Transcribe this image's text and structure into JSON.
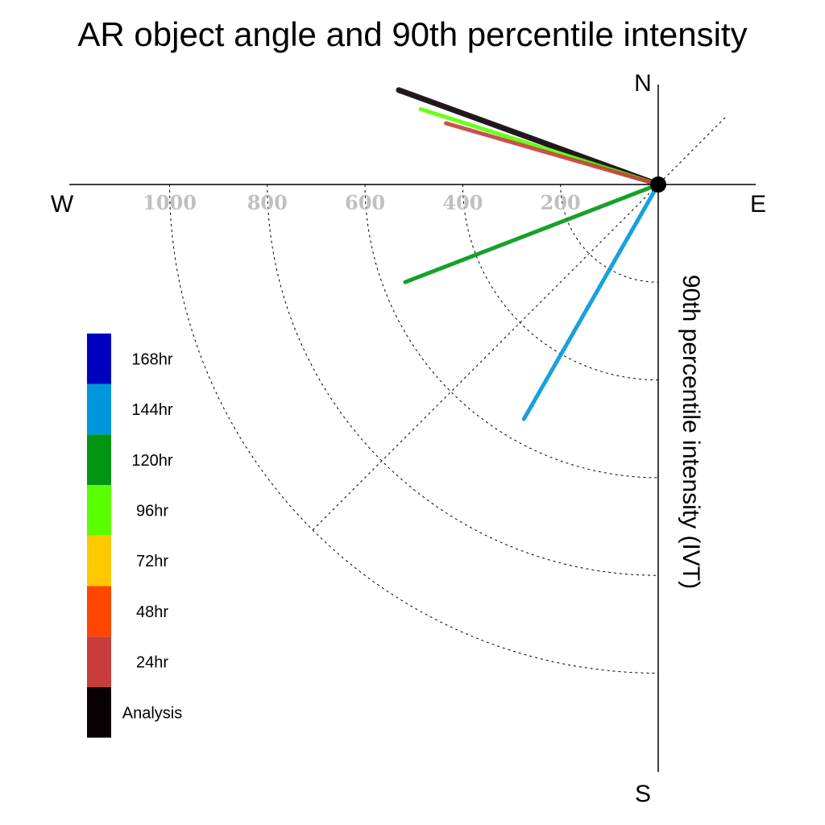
{
  "chart_data": {
    "type": "polar-vector",
    "title": "AR object angle and 90th percentile intensity",
    "ylabel": "90th percentile intensity (IVT)",
    "compass": {
      "north": "N",
      "south": "S",
      "east": "E",
      "west": "W"
    },
    "radial_ticks": [
      200,
      400,
      600,
      800,
      1000
    ],
    "radial_tick_labels": [
      "200",
      "400",
      "600",
      "800",
      "1000"
    ],
    "rlim": [
      0,
      1200
    ],
    "grid": true,
    "legend_position": "lower-left",
    "legend": [
      {
        "label": "168hr",
        "color": "#0000c0"
      },
      {
        "label": "144hr",
        "color": "#0096dc"
      },
      {
        "label": "120hr",
        "color": "#009614"
      },
      {
        "label": "96hr",
        "color": "#5aff00"
      },
      {
        "label": "72hr",
        "color": "#ffc800"
      },
      {
        "label": "48hr",
        "color": "#ff4600"
      },
      {
        "label": "24hr",
        "color": "#c83c3c"
      },
      {
        "label": "Analysis",
        "color": "#0a0006"
      }
    ],
    "series": [
      {
        "name": "Analysis",
        "angle_deg": 290.0,
        "intensity": 565,
        "color": "#0a0006",
        "width": 7
      },
      {
        "name": "96hr",
        "angle_deg": 287.6,
        "intensity": 510,
        "color": "#5aff00",
        "width": 5
      },
      {
        "name": "24hr",
        "angle_deg": 286.1,
        "intensity": 452,
        "color": "#c83c3c",
        "width": 5
      },
      {
        "name": "120hr",
        "angle_deg": 248.9,
        "intensity": 555,
        "color": "#009614",
        "width": 5
      },
      {
        "name": "144hr",
        "angle_deg": 209.8,
        "intensity": 553,
        "color": "#0096dc",
        "width": 5
      }
    ]
  }
}
